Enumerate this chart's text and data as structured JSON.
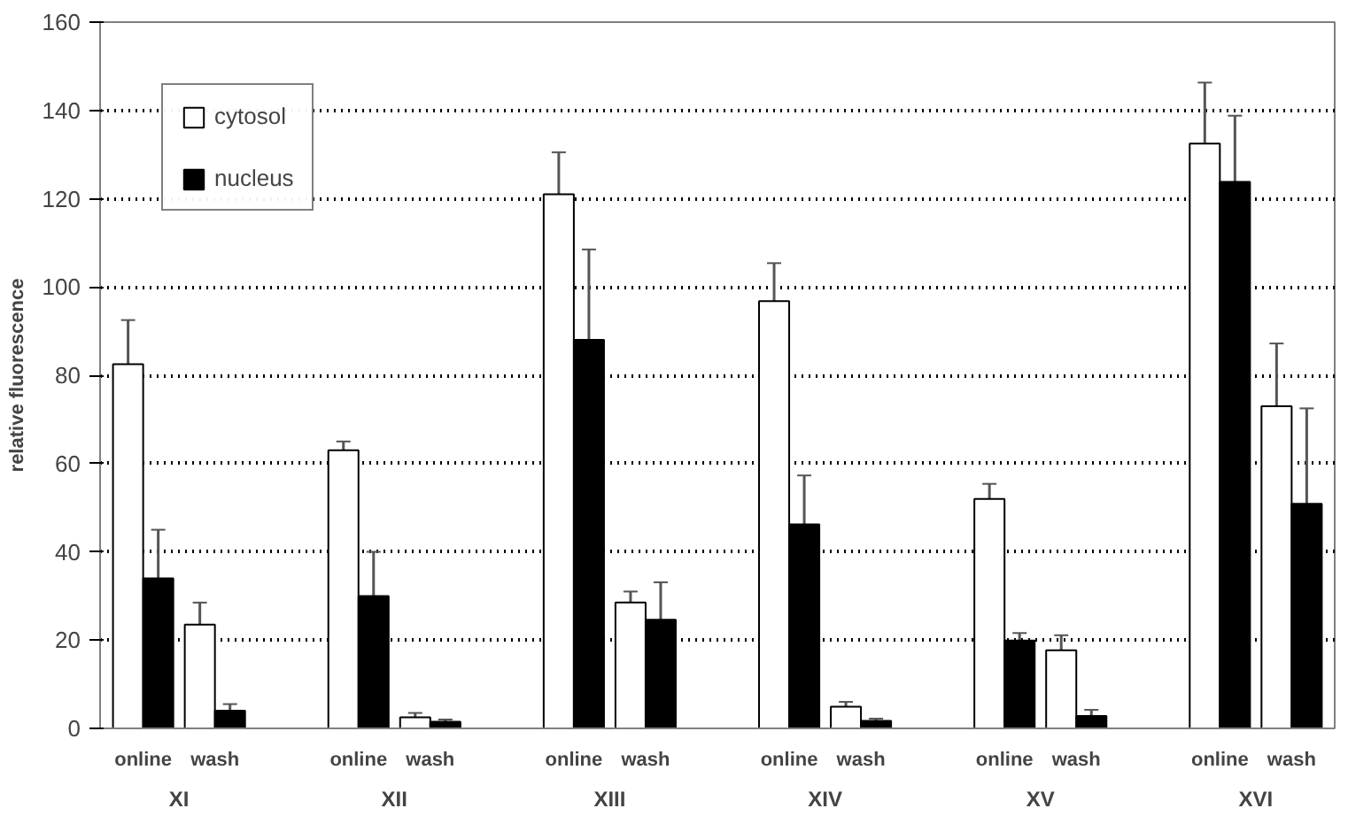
{
  "chart_data": {
    "type": "bar",
    "ylabel": "relative fluorescence",
    "categories": [
      "online",
      "wash",
      "online",
      "wash",
      "online",
      "wash",
      "online",
      "wash",
      "online",
      "wash",
      "online",
      "wash"
    ],
    "annotations": [
      "XI",
      "XII",
      "XIII",
      "XIV",
      "XV",
      "XVI"
    ],
    "series": [
      {
        "name": "cytosol",
        "color": "#ffffff",
        "values": [
          82.5,
          23.5,
          63,
          2.5,
          121,
          28.5,
          96.8,
          4.9,
          52,
          17.7,
          132.5,
          73
        ],
        "errors": [
          [
            82.5,
            92.5
          ],
          [
            23.5,
            28.5
          ],
          [
            63,
            65
          ],
          [
            2.5,
            3.5
          ],
          [
            121,
            130.5
          ],
          [
            28.5,
            31
          ],
          [
            96.8,
            105.4
          ],
          [
            4.9,
            6
          ],
          [
            52,
            55.4
          ],
          [
            17.7,
            21.1
          ],
          [
            132.5,
            146.3
          ],
          [
            73,
            87.2
          ]
        ]
      },
      {
        "name": "nucleus",
        "color": "#000000",
        "values": [
          34,
          4,
          30,
          1.5,
          88,
          24.6,
          46.2,
          1.7,
          19.9,
          2.8,
          123.8,
          50.9
        ],
        "errors": [
          [
            34,
            45
          ],
          [
            4,
            5.5
          ],
          [
            30,
            40
          ],
          [
            1.5,
            2
          ],
          [
            88,
            108.5
          ],
          [
            24.6,
            33.1
          ],
          [
            46.2,
            57.3
          ],
          [
            1.7,
            2.2
          ],
          [
            19.9,
            21.6
          ],
          [
            2.8,
            4.2
          ],
          [
            123.8,
            138.8
          ],
          [
            50.9,
            72.5
          ]
        ]
      }
    ],
    "ylim": [
      0,
      160
    ],
    "yticks": [
      0,
      20,
      40,
      60,
      80,
      100,
      120,
      140,
      160
    ],
    "grid": "y",
    "legend": "top left"
  }
}
